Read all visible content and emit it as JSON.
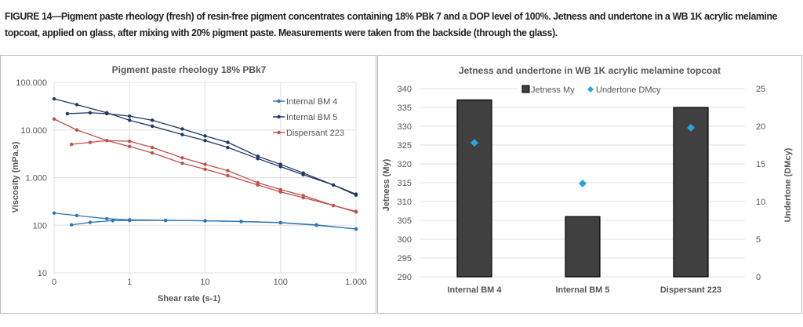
{
  "caption": "FIGURE 14—Pigment paste rheology (fresh) of resin-free pigment concentrates containing 18% PBk 7 and a DOP level of 100%. Jetness and undertone in a WB 1K acrylic melamine topcoat, applied on glass, after mixing with 20% pigment paste. Measurements were taken from the backside (through the glass).",
  "chart_data": [
    {
      "type": "line",
      "title": "Pigment paste rheology 18% PBk7",
      "xlabel": "Shear rate (s-1)",
      "ylabel": "Viscosity (mPa.s)",
      "xscale": "log",
      "yscale": "log",
      "xlim": [
        0.1,
        1000
      ],
      "ylim": [
        10,
        100000
      ],
      "xticks": [
        {
          "v": 0.1,
          "label": "0"
        },
        {
          "v": 1,
          "label": "1"
        },
        {
          "v": 10,
          "label": "10"
        },
        {
          "v": 100,
          "label": "100"
        },
        {
          "v": 1000,
          "label": "1.000"
        }
      ],
      "yticks": [
        {
          "v": 10,
          "label": "10"
        },
        {
          "v": 100,
          "label": "100"
        },
        {
          "v": 1000,
          "label": "1.000"
        },
        {
          "v": 10000,
          "label": "10.000"
        },
        {
          "v": 100000,
          "label": "100.000"
        }
      ],
      "grid": true,
      "legend": "top-right",
      "series": [
        {
          "name": "Internal BM 4",
          "color": "#2e75b6",
          "branches": [
            [
              [
                0.1,
                180
              ],
              [
                0.2,
                160
              ],
              [
                0.5,
                137
              ],
              [
                1,
                130
              ],
              [
                3,
                127
              ],
              [
                10,
                124
              ],
              [
                30,
                120
              ],
              [
                100,
                114
              ],
              [
                300,
                102
              ],
              [
                1000,
                83
              ]
            ],
            [
              [
                0.17,
                102
              ],
              [
                0.3,
                115
              ],
              [
                0.6,
                125
              ],
              [
                1,
                126
              ],
              [
                3,
                126
              ],
              [
                10,
                124
              ],
              [
                30,
                120
              ],
              [
                100,
                113
              ],
              [
                300,
                100
              ],
              [
                1000,
                84
              ]
            ]
          ]
        },
        {
          "name": "Internal BM 5",
          "color": "#203864",
          "branches": [
            [
              [
                0.1,
                45000
              ],
              [
                0.2,
                34000
              ],
              [
                0.5,
                23000
              ],
              [
                1,
                16000
              ],
              [
                2,
                12000
              ],
              [
                5,
                8000
              ],
              [
                10,
                6000
              ],
              [
                20,
                4300
              ],
              [
                50,
                2500
              ],
              [
                100,
                1700
              ],
              [
                200,
                1150
              ],
              [
                500,
                700
              ],
              [
                1000,
                430
              ]
            ],
            [
              [
                0.15,
                22000
              ],
              [
                0.3,
                23000
              ],
              [
                0.5,
                22000
              ],
              [
                1,
                19500
              ],
              [
                2,
                16000
              ],
              [
                5,
                10500
              ],
              [
                10,
                7500
              ],
              [
                20,
                5500
              ],
              [
                50,
                2800
              ],
              [
                100,
                1900
              ],
              [
                200,
                1250
              ],
              [
                500,
                700
              ],
              [
                1000,
                450
              ]
            ]
          ]
        },
        {
          "name": "Dispersant 223",
          "color": "#c0504d",
          "branches": [
            [
              [
                0.1,
                17000
              ],
              [
                0.2,
                10000
              ],
              [
                0.5,
                6000
              ],
              [
                1,
                4500
              ],
              [
                2,
                3300
              ],
              [
                5,
                2000
              ],
              [
                10,
                1500
              ],
              [
                20,
                1100
              ],
              [
                50,
                700
              ],
              [
                100,
                500
              ],
              [
                200,
                380
              ],
              [
                500,
                260
              ],
              [
                1000,
                190
              ]
            ],
            [
              [
                0.17,
                5000
              ],
              [
                0.3,
                5500
              ],
              [
                0.5,
                6000
              ],
              [
                1,
                5800
              ],
              [
                2,
                4300
              ],
              [
                5,
                2600
              ],
              [
                10,
                1900
              ],
              [
                20,
                1400
              ],
              [
                50,
                780
              ],
              [
                100,
                560
              ],
              [
                200,
                420
              ],
              [
                500,
                260
              ],
              [
                1000,
                195
              ]
            ]
          ]
        }
      ]
    },
    {
      "type": "bar",
      "title": "Jetness and undertone in WB 1K acrylic melamine topcoat",
      "ylabel": "Jetness (My)",
      "y2label": "Undertone (DMcy)",
      "categories": [
        "Internal BM 4",
        "Internal BM 5",
        "Dispersant 223"
      ],
      "ylim": [
        290,
        340
      ],
      "y2lim": [
        0,
        25
      ],
      "yticks": [
        290,
        295,
        300,
        305,
        310,
        315,
        320,
        325,
        330,
        335,
        340
      ],
      "y2ticks": [
        0,
        5,
        10,
        15,
        20,
        25
      ],
      "grid": true,
      "legend": "top",
      "series": [
        {
          "name": "Jetness My",
          "type": "bar",
          "axis": "left",
          "color": "#404040",
          "values": [
            337,
            306,
            335
          ]
        },
        {
          "name": "Undertone DMcy",
          "type": "scatter",
          "axis": "right",
          "color": "#29a3dc",
          "values": [
            17.8,
            12.4,
            19.8
          ]
        }
      ]
    }
  ]
}
